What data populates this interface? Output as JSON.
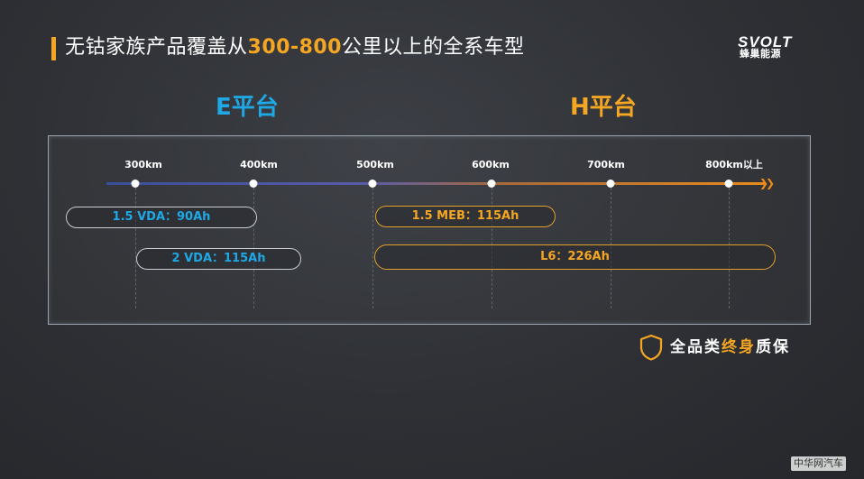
{
  "header": {
    "title_prefix": "无钴家族产品覆盖从",
    "title_accent": "300-800",
    "title_suffix": "公里以上的全系车型"
  },
  "logo": {
    "brand_top": "SVOLT",
    "brand_bottom": "蜂巢能源"
  },
  "platforms": {
    "e_label": "E平台",
    "h_label": "H平台"
  },
  "axis": {
    "ticks": [
      "300km",
      "400km",
      "500km",
      "600km",
      "700km",
      "800km以上"
    ]
  },
  "products": {
    "e": [
      {
        "label": "1.5 VDA：90Ah"
      },
      {
        "label": "2 VDA：115Ah"
      }
    ],
    "h": [
      {
        "label": "1.5 MEB：115Ah"
      },
      {
        "label": "L6：226Ah"
      }
    ]
  },
  "guarantee": {
    "prefix": "全品类",
    "accent": "终身",
    "suffix": "质保"
  },
  "watermark": "中华网汽车",
  "colors": {
    "accent_orange": "#f5a623",
    "accent_blue": "#1fa8e6",
    "background": "#2e3035"
  },
  "icons": {
    "guarantee_icon": "shield-icon",
    "axis_arrow": "double-chevron-right-icon"
  }
}
